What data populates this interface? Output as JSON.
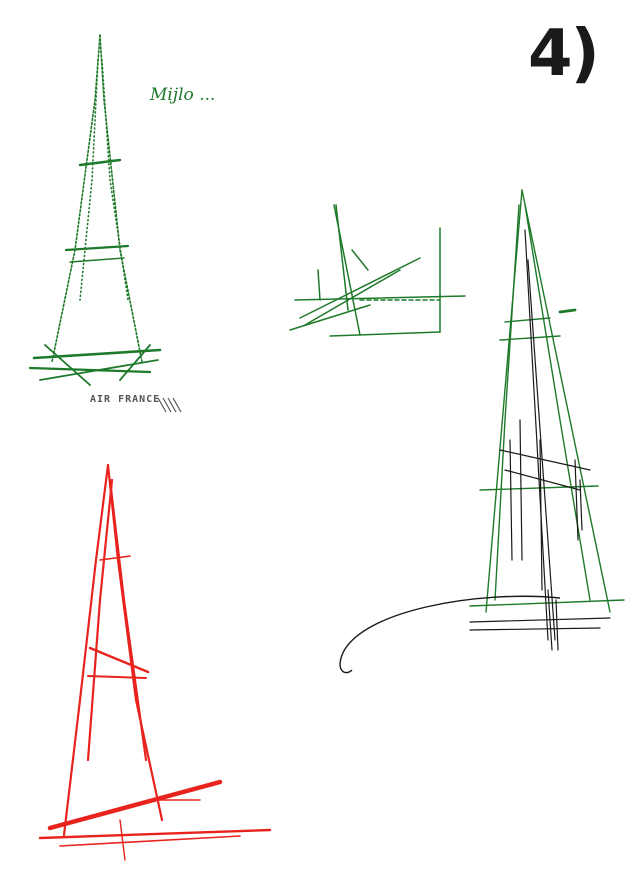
{
  "page": {
    "number_label": "4)",
    "background": "#ffffff"
  },
  "colors": {
    "ink_black": "#1a1a1a",
    "ink_green": "#1e7a2a",
    "ink_red": "#e8231e"
  },
  "notes": {
    "green_column": "Mijlo ...",
    "green_center": "",
    "red_upper": "",
    "red_middle": "",
    "red_bottom": "",
    "black_right": ""
  },
  "stamp": {
    "text": "AIR FRANCE"
  }
}
